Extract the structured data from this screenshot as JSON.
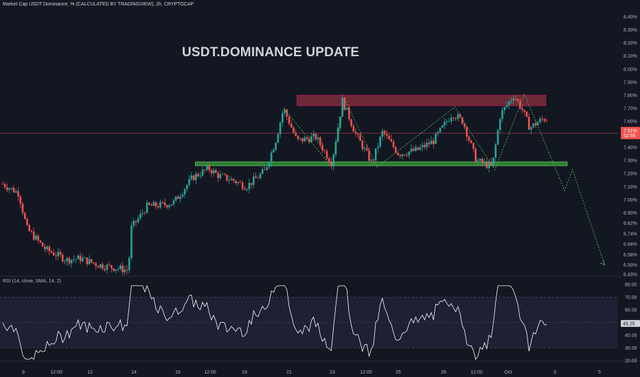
{
  "header": {
    "symbol_line": "Market Cap USDT Dominance, % (CALCULATED BY TRADINGVIEW), 2h, CRYPTOCAP"
  },
  "annotation_title": "USDT.DOMINANCE  UPDATE",
  "rsi_panel": {
    "label": "RSI (14, close, SMA, 14, 2)"
  },
  "colors": {
    "background": "#131722",
    "up_candle": "#26a69a",
    "down_candle": "#ef5350",
    "resistance_zone": "#8b2f3d",
    "support_zone": "#2e7d32",
    "projection_line": "#4caf50",
    "rsi_line": "#ffffff",
    "rsi_band": "#1e2033"
  },
  "chart_data": [
    {
      "type": "candlestick",
      "title": "",
      "y_axis_ticks": [
        "8.40%",
        "8.30%",
        "8.20%",
        "8.10%",
        "8.00%",
        "7.90%",
        "7.80%",
        "7.70%",
        "7.60%",
        "7.50%",
        "7.40%",
        "7.30%",
        "7.20%",
        "7.10%",
        "7.00%",
        "6.90%",
        "6.82%",
        "6.74%",
        "6.66%",
        "6.58%",
        "6.50%",
        "6.43%"
      ],
      "x_axis_ticks": [
        "9",
        "12:00",
        "12",
        "14",
        "16",
        "12:00",
        "19",
        "21",
        "23",
        "12:00",
        "26",
        "28",
        "12:00",
        "Oct",
        "3",
        "5"
      ],
      "ylim": [
        6.43,
        8.45
      ],
      "current_price_label": "7.51%",
      "current_price_sublabel": "52:55",
      "current_price": 7.51,
      "zones": [
        {
          "name": "resistance",
          "from": 7.72,
          "to": 7.8,
          "start": "19",
          "end": "12:00"
        },
        {
          "name": "support",
          "from": 7.26,
          "to": 7.29,
          "start": "16",
          "end": "12:00"
        }
      ],
      "trend_path": [
        [
          19.1,
          7.7
        ],
        [
          20.9,
          7.25
        ],
        [
          21.4,
          7.76
        ],
        [
          22.6,
          7.25
        ],
        [
          25.5,
          7.71
        ],
        [
          26.2,
          7.48
        ],
        [
          27.0,
          7.23
        ],
        [
          28.1,
          7.81
        ],
        [
          29.3,
          7.22
        ],
        [
          29.6,
          7.07
        ],
        [
          29.9,
          7.23
        ],
        [
          31.1,
          6.5
        ]
      ],
      "candles_x_range": [
        "9",
        "12:00"
      ]
    },
    {
      "type": "line",
      "title": "RSI (14, close, SMA, 14, 2)",
      "y_axis_ticks": [
        "80.00",
        "70.00",
        "60.00",
        "50.00",
        "40.00",
        "30.00",
        "20.00"
      ],
      "ylim": [
        20,
        80
      ],
      "band": [
        30,
        70
      ],
      "midline": 50,
      "current_value_label": "49.25",
      "current_value": 49.25
    }
  ]
}
